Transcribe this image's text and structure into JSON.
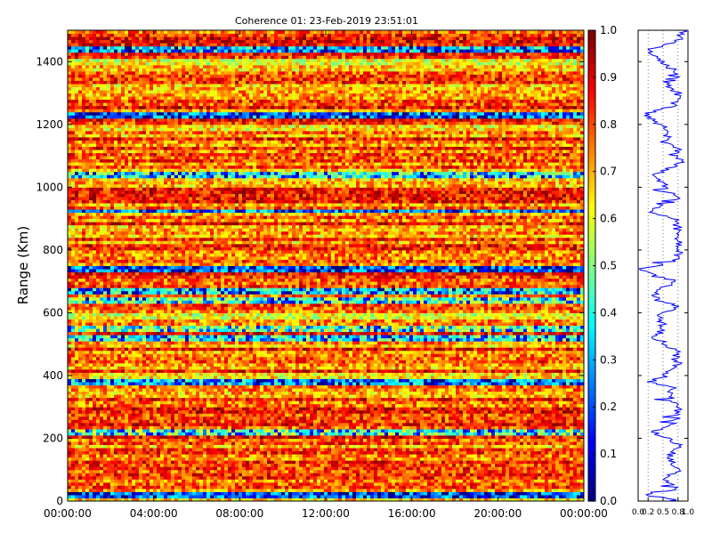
{
  "chart_data": [
    {
      "type": "heatmap",
      "title": "Coherence 01: 23-Feb-2019 23:51:01",
      "ylabel": "Range (Km)",
      "xlabel": "",
      "x_ticks": [
        "00:00:00",
        "04:00:00",
        "08:00:00",
        "12:00:00",
        "16:00:00",
        "20:00:00",
        "00:00:00"
      ],
      "x_range_hours": [
        0,
        24
      ],
      "y_ticks": [
        0,
        200,
        400,
        600,
        800,
        1000,
        1200,
        1400
      ],
      "ylim": [
        0,
        1500
      ],
      "colorbar": {
        "ticks": [
          "0.0",
          "0.1",
          "0.2",
          "0.3",
          "0.4",
          "0.5",
          "0.6",
          "0.7",
          "0.8",
          "0.9",
          "1.0"
        ],
        "range": [
          0,
          1
        ],
        "colormap": "jet"
      },
      "low_coherence_bands_km": [
        {
          "range": 20,
          "value": 0.1
        },
        {
          "range": 220,
          "value": 0.35
        },
        {
          "range": 340,
          "value": 0.55
        },
        {
          "range": 380,
          "value": 0.2
        },
        {
          "range": 400,
          "value": 0.5
        },
        {
          "range": 520,
          "value": 0.3
        },
        {
          "range": 550,
          "value": 0.4
        },
        {
          "range": 590,
          "value": 0.45
        },
        {
          "range": 640,
          "value": 0.35
        },
        {
          "range": 670,
          "value": 0.25
        },
        {
          "range": 740,
          "value": 0.1
        },
        {
          "range": 925,
          "value": 0.15
        },
        {
          "range": 1010,
          "value": 0.55
        },
        {
          "range": 1040,
          "value": 0.3
        },
        {
          "range": 1190,
          "value": 0.5
        },
        {
          "range": 1230,
          "value": 0.15
        },
        {
          "range": 1320,
          "value": 0.55
        },
        {
          "range": 1400,
          "value": 0.45
        },
        {
          "range": 1440,
          "value": 0.2
        }
      ]
    },
    {
      "type": "line",
      "x_ticks": [
        "0.0",
        "0.2",
        "0.5",
        "0.8",
        "1.0"
      ],
      "xlim": [
        0,
        1
      ],
      "ylim": [
        0,
        1500
      ],
      "line_color": "#0000ff",
      "profile": [
        [
          0,
          0.85
        ],
        [
          20,
          0.15
        ],
        [
          40,
          0.8
        ],
        [
          70,
          0.55
        ],
        [
          100,
          0.8
        ],
        [
          140,
          0.6
        ],
        [
          180,
          0.85
        ],
        [
          220,
          0.3
        ],
        [
          250,
          0.75
        ],
        [
          300,
          0.8
        ],
        [
          340,
          0.6
        ],
        [
          360,
          0.75
        ],
        [
          380,
          0.25
        ],
        [
          400,
          0.55
        ],
        [
          440,
          0.8
        ],
        [
          480,
          0.75
        ],
        [
          520,
          0.35
        ],
        [
          550,
          0.5
        ],
        [
          590,
          0.45
        ],
        [
          620,
          0.8
        ],
        [
          640,
          0.4
        ],
        [
          670,
          0.3
        ],
        [
          700,
          0.8
        ],
        [
          740,
          0.05
        ],
        [
          760,
          0.7
        ],
        [
          800,
          0.85
        ],
        [
          850,
          0.8
        ],
        [
          900,
          0.75
        ],
        [
          925,
          0.2
        ],
        [
          960,
          0.85
        ],
        [
          1000,
          0.55
        ],
        [
          1040,
          0.35
        ],
        [
          1080,
          0.85
        ],
        [
          1120,
          0.8
        ],
        [
          1150,
          0.6
        ],
        [
          1190,
          0.55
        ],
        [
          1230,
          0.1
        ],
        [
          1260,
          0.7
        ],
        [
          1300,
          0.8
        ],
        [
          1320,
          0.6
        ],
        [
          1360,
          0.8
        ],
        [
          1400,
          0.5
        ],
        [
          1440,
          0.25
        ],
        [
          1470,
          0.85
        ],
        [
          1500,
          0.9
        ]
      ]
    }
  ]
}
